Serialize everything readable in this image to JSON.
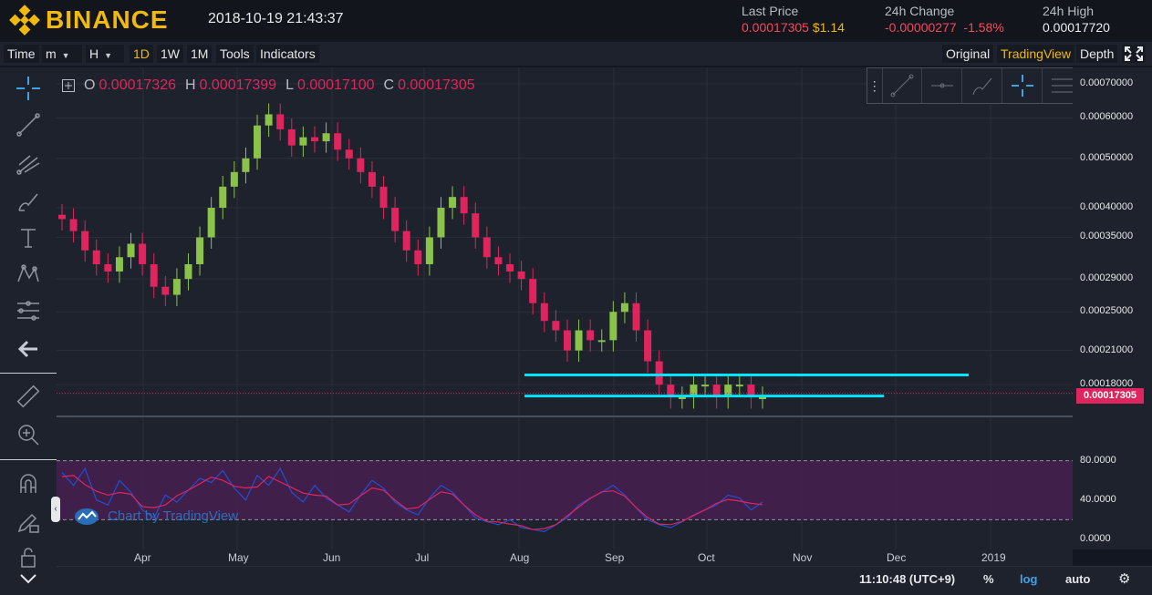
{
  "header": {
    "brand": "BINANCE",
    "datetime": "2018-10-19 21:43:37",
    "last_price_label": "Last Price",
    "last_price": "0.00017305",
    "last_price_usd": "$1.14",
    "change_label": "24h Change",
    "change_abs": "-0.00000277",
    "change_pct": "-1.58%",
    "high_label": "24h High",
    "high_value": "0.00017720"
  },
  "toolbar": {
    "time": "Time",
    "minute": "m",
    "hour": "H",
    "d1": "1D",
    "w1": "1W",
    "m1": "1M",
    "tools": "Tools",
    "indicators": "Indicators",
    "original": "Original",
    "tradingview": "TradingView",
    "depth": "Depth"
  },
  "legend": {
    "o_key": "O",
    "o_val": "0.00017326",
    "h_key": "H",
    "h_val": "0.00017399",
    "l_key": "L",
    "l_val": "0.00017100",
    "c_key": "C",
    "c_val": "0.00017305"
  },
  "chart_data": {
    "type": "candlestick",
    "scale": "log",
    "price_ticks": [
      "0.00070000",
      "0.00060000",
      "0.00050000",
      "0.00040000",
      "0.00035000",
      "0.00029000",
      "0.00025000",
      "0.00021000",
      "0.00018000"
    ],
    "current_price": "0.00017305",
    "time_ticks": [
      "Apr",
      "May",
      "Jun",
      "Jul",
      "Aug",
      "Sep",
      "Oct",
      "Nov",
      "Dec",
      "2019"
    ],
    "close_series": [
      0.00038,
      0.00036,
      0.00033,
      0.00031,
      0.0003,
      0.00032,
      0.00034,
      0.00031,
      0.00028,
      0.00027,
      0.00029,
      0.00031,
      0.00035,
      0.0004,
      0.00044,
      0.00047,
      0.0005,
      0.00058,
      0.00061,
      0.00057,
      0.00053,
      0.00055,
      0.00054,
      0.00056,
      0.00052,
      0.0005,
      0.00047,
      0.00044,
      0.0004,
      0.00036,
      0.00033,
      0.00031,
      0.00035,
      0.0004,
      0.00042,
      0.00039,
      0.00035,
      0.00032,
      0.00031,
      0.0003,
      0.00029,
      0.00026,
      0.00024,
      0.00023,
      0.00021,
      0.00023,
      0.00022,
      0.00022,
      0.00025,
      0.00026,
      0.00023,
      0.0002,
      0.00018,
      0.00017,
      0.00017,
      0.00018,
      0.00018,
      0.00017,
      0.00018,
      0.00018,
      0.00017,
      0.00017
    ],
    "oscillator_ticks": [
      "80.0000",
      "40.0000",
      "0.0000"
    ],
    "oscillator": [
      68,
      55,
      72,
      40,
      35,
      60,
      48,
      30,
      22,
      45,
      38,
      50,
      62,
      58,
      70,
      52,
      40,
      65,
      55,
      72,
      48,
      38,
      55,
      42,
      35,
      28,
      45,
      60,
      52,
      38,
      30,
      25,
      42,
      55,
      48,
      35,
      22,
      18,
      15,
      20,
      12,
      10,
      8,
      15,
      22,
      35,
      42,
      48,
      55,
      45,
      32,
      20,
      15,
      12,
      18,
      25,
      30,
      35,
      45,
      42,
      30,
      38
    ],
    "channel_lines": [
      {
        "from": "Aug",
        "to": "Dec",
        "price": 0.000188
      },
      {
        "from": "Aug",
        "to": "Nov",
        "price": 0.000171
      }
    ]
  },
  "bottom": {
    "clock": "11:10:48 (UTC+9)",
    "pct": "%",
    "log": "log",
    "auto": "auto"
  },
  "watermark": "Chart by TradingView",
  "colors": {
    "brand": "#f0b90b",
    "up": "#8bc34a",
    "down": "#e0245e",
    "channel": "#00e5ff",
    "oscillator_band": "#4a1f52"
  }
}
